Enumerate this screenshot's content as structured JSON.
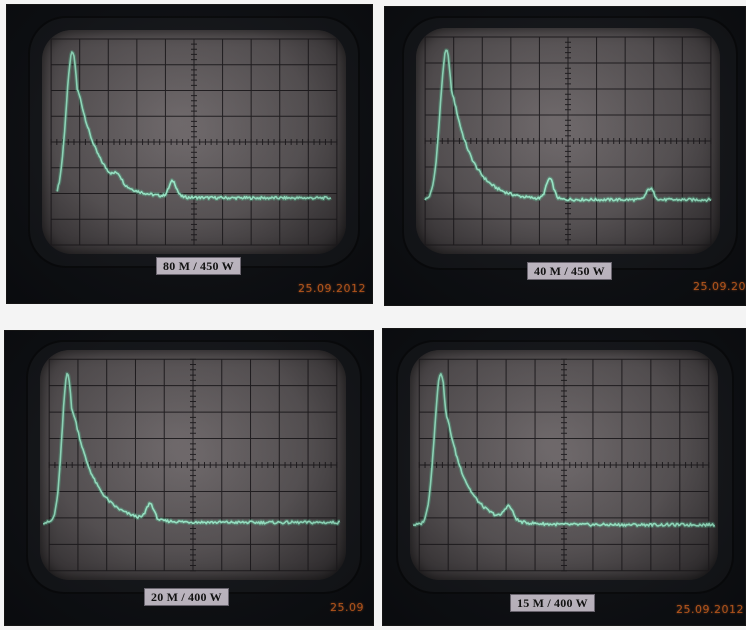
{
  "panels": [
    {
      "label": "80 M / 450 W",
      "date": "25.09.2012"
    },
    {
      "label": "40 M / 450 W",
      "date": "25.09.20"
    },
    {
      "label": "20 M / 400 W",
      "date": "25.09"
    },
    {
      "label": "15 M / 400 W",
      "date": "25.09.2012"
    }
  ],
  "colors": {
    "trace": "#9ff0cf",
    "trace_glow": "#5fcf9f",
    "grid": "#1d1a1d",
    "date_stamp": "#e06a22"
  }
}
